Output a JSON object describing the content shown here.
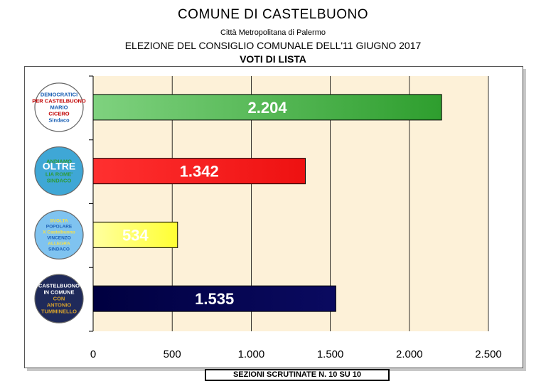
{
  "header": {
    "title": "COMUNE  DI  CASTELBUONO",
    "subtitle": "Città Metropolitana di Palermo",
    "election": "ELEZIONE DEL CONSIGLIO COMUNALE DELL'11 GIUGNO 2017",
    "section": "VOTI DI LISTA"
  },
  "footer": {
    "label": "SEZIONI SCRUTINATE N.  10  SU 10"
  },
  "lists": [
    {
      "logo_text": [
        "DEMOCRATICI",
        "PER CASTELBUONO",
        "MARIO",
        "CICERO",
        "Sindaco"
      ],
      "logo_colors": [
        "#ffffff",
        "#1a5fb4",
        "#c00000"
      ]
    },
    {
      "logo_text": [
        "ANDIAMO",
        "OLTRE",
        "LIA ROME'",
        "SINDACO"
      ],
      "logo_colors": [
        "#3fa7d6",
        "#2e9b3a",
        "#ffffff"
      ]
    },
    {
      "logo_text": [
        "SVOLTA",
        "POPOLARE",
        "X Castelbuono",
        "VINCENZO",
        "ALLEGRA",
        "SINDACO"
      ],
      "logo_colors": [
        "#7fc3f0",
        "#f4e14c",
        "#1a5fb4"
      ]
    },
    {
      "logo_text": [
        "CASTELBUONO",
        "IN COMUNE",
        "CON",
        "ANTONIO",
        "TUMMINELLO"
      ],
      "logo_colors": [
        "#1f2a5a",
        "#ffffff",
        "#d6a22c"
      ]
    }
  ],
  "chart_data": {
    "type": "bar",
    "orientation": "horizontal",
    "categories": [
      "DEMOCRATICI PER CASTELBUONO - MARIO CICERO Sindaco",
      "ANDIAMO OLTRE - LIA ROME' SINDACO",
      "SVOLTA POPOLARE X Castelbuono - VINCENZO ALLEGRA SINDACO",
      "CASTELBUONO IN COMUNE - CON ANTONIO TUMMINELLO"
    ],
    "values": [
      2204,
      1342,
      534,
      1535
    ],
    "value_labels": [
      "2.204",
      "1.342",
      "534",
      "1.535"
    ],
    "bar_colors": [
      "#2e9e2e",
      "#ee1111",
      "#ffff33",
      "#0a0a60"
    ],
    "bar_gradient_start": [
      "#7fd27f",
      "#ff3030",
      "#ffffa0",
      "#000040"
    ],
    "xlim": [
      0,
      2500
    ],
    "xticks": [
      0,
      500,
      1000,
      1500,
      2000,
      2500
    ],
    "xtick_labels": [
      "0",
      "500",
      "1.000",
      "1.500",
      "2.000",
      "2.500"
    ],
    "grid": "vertical",
    "plot_background": "#fdf1d8"
  }
}
